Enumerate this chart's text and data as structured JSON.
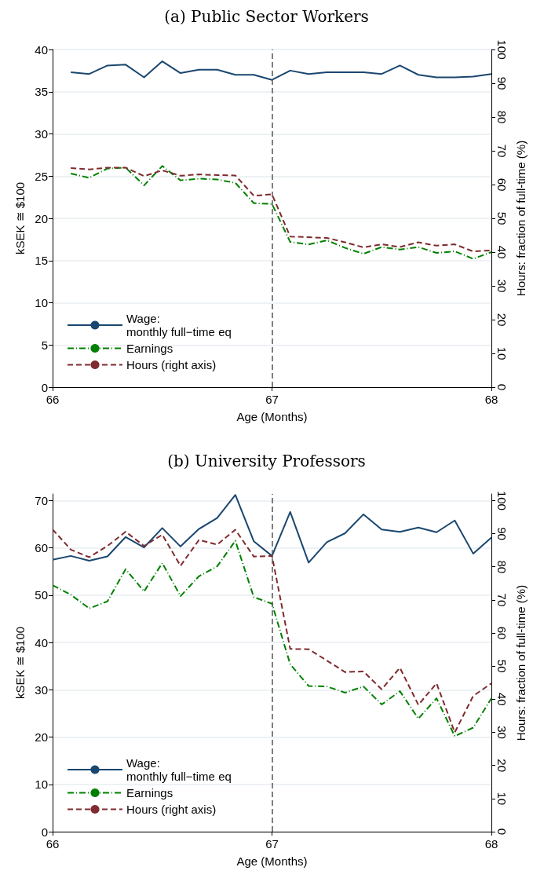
{
  "chart_data": [
    {
      "type": "line",
      "title": "(a) Public Sector Workers",
      "xlabel": "Age (Months)",
      "ylabel": "kSEK ≅ $100",
      "y2label": "Hours: fraction of full-time (%)",
      "x": [
        66.083,
        66.167,
        66.25,
        66.333,
        66.417,
        66.5,
        66.583,
        66.667,
        66.75,
        66.833,
        66.917,
        67,
        67.083,
        67.167,
        67.25,
        67.333,
        67.417,
        67.5,
        67.583,
        67.667,
        67.75,
        67.833,
        67.917,
        68
      ],
      "xlim": [
        66,
        68
      ],
      "xticks": [
        66,
        67,
        68
      ],
      "ylim": [
        0,
        40
      ],
      "yticks": [
        0,
        5,
        10,
        15,
        20,
        25,
        30,
        35,
        40
      ],
      "y2lim": [
        0,
        100
      ],
      "y2ticks": [
        0,
        10,
        20,
        30,
        40,
        50,
        60,
        70,
        80,
        90,
        100
      ],
      "grid": "y",
      "legend": "bottom left",
      "marker": "none",
      "ref_lines": [
        {
          "axis": "x",
          "value": 67,
          "color": "#555555",
          "line_style": "dashed"
        }
      ],
      "series": [
        {
          "name": "Wage:\nmonthly full−time eq",
          "color": "#1a476f",
          "line_style": "solid",
          "values": [
            37.3,
            37.1,
            38.1,
            38.2,
            36.7,
            38.6,
            37.2,
            37.6,
            37.6,
            37.0,
            37.0,
            36.4,
            37.5,
            37.1,
            37.3,
            37.3,
            37.3,
            37.1,
            38.1,
            37.0,
            36.7,
            36.7,
            36.8,
            37.1
          ]
        },
        {
          "name": "Earnings",
          "color": "#008000",
          "line_style": "dashdot",
          "values": [
            25.3,
            24.8,
            25.9,
            26.0,
            23.9,
            26.2,
            24.5,
            24.7,
            24.6,
            24.2,
            21.8,
            21.7,
            17.2,
            16.9,
            17.4,
            16.5,
            15.8,
            16.6,
            16.3,
            16.6,
            15.9,
            16.1,
            15.2,
            16.0
          ]
        },
        {
          "name": "Hours (right axis)",
          "color": "#7f2b2f",
          "line_style": "dashed",
          "axis": "y2",
          "values": [
            64.9,
            64.5,
            65.0,
            65.0,
            62.5,
            64.2,
            62.6,
            63.0,
            62.8,
            62.7,
            56.7,
            57.1,
            44.6,
            44.4,
            44.2,
            42.9,
            41.4,
            42.3,
            41.5,
            42.9,
            41.9,
            42.3,
            40.2,
            40.5
          ]
        }
      ]
    },
    {
      "type": "line",
      "title": "(b) University Professors",
      "xlabel": "Age (Months)",
      "ylabel": "kSEK ≅ $100",
      "y2label": "Hours: fraction of full-time (%)",
      "x": [
        66,
        66.083,
        66.167,
        66.25,
        66.333,
        66.417,
        66.5,
        66.583,
        66.667,
        66.75,
        66.833,
        66.917,
        67,
        67.083,
        67.167,
        67.25,
        67.333,
        67.417,
        67.5,
        67.583,
        67.667,
        67.75,
        67.833,
        67.917,
        68
      ],
      "xlim": [
        66,
        68
      ],
      "xticks": [
        66,
        67,
        68
      ],
      "ylim": [
        0,
        71.4
      ],
      "yticks": [
        0,
        10,
        20,
        30,
        40,
        50,
        60,
        70
      ],
      "y2lim": [
        0,
        102
      ],
      "y2ticks": [
        0,
        10,
        20,
        30,
        40,
        50,
        60,
        70,
        80,
        90,
        100
      ],
      "grid": "y",
      "legend": "bottom left",
      "marker": "none",
      "ref_lines": [
        {
          "axis": "x",
          "value": 67,
          "color": "#555555",
          "line_style": "dashed"
        }
      ],
      "series": [
        {
          "name": "Wage:\nmonthly full−time eq",
          "color": "#1a476f",
          "line_style": "solid",
          "values": [
            57.5,
            58.3,
            57.3,
            58.2,
            62.3,
            60.1,
            64.2,
            60.3,
            64.0,
            66.3,
            71.2,
            61.4,
            58.3,
            67.6,
            56.9,
            61.2,
            63.1,
            67.1,
            63.9,
            63.4,
            64.3,
            63.3,
            65.8,
            58.8,
            62.2
          ]
        },
        {
          "name": "Earnings",
          "color": "#008000",
          "line_style": "dashdot",
          "values": [
            52.1,
            50.1,
            47.2,
            48.7,
            55.5,
            50.8,
            56.8,
            49.8,
            54.0,
            56.1,
            61.5,
            49.6,
            48.2,
            35.4,
            30.8,
            30.7,
            29.4,
            30.7,
            26.9,
            29.7,
            23.9,
            28.2,
            20.2,
            22.0,
            28.2
          ]
        },
        {
          "name": "Hours (right axis)",
          "color": "#7f2b2f",
          "line_style": "dashed",
          "axis": "y2",
          "values": [
            91.3,
            85.2,
            82.9,
            86.3,
            90.6,
            86.3,
            89.7,
            80.3,
            88.1,
            86.7,
            91.2,
            83.1,
            83.3,
            55.2,
            55.1,
            51.7,
            48.2,
            48.4,
            43.0,
            49.5,
            38.3,
            44.8,
            30.0,
            41.0,
            44.8
          ]
        }
      ]
    }
  ]
}
